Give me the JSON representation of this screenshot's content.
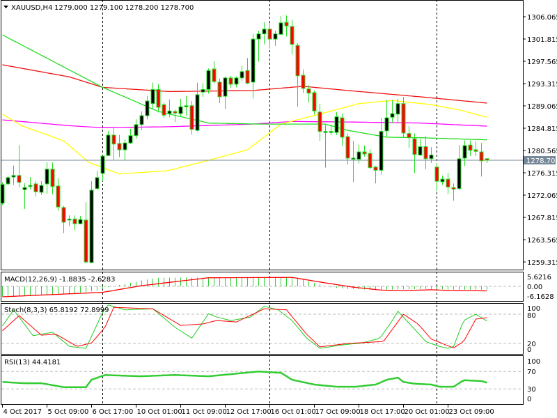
{
  "header": {
    "menu_icon": "triangle-down-icon",
    "symbol": "XAUUSD,H4",
    "ohlc": "1279.000 1279.100 1278.200 1278.700"
  },
  "colors": {
    "bull_body": "#000000",
    "bear_body": "#ff0000",
    "candle_outline": "#22e022",
    "ma_green": "#22dd22",
    "ma_red": "#ee1111",
    "ma_magenta": "#ff00ff",
    "ma_yellow": "#ffff00",
    "bid_line": "#778899",
    "macd_hist": "#33cc33",
    "signal": "#ff0000",
    "stoch_main": "#22cc22",
    "rsi": "#33cc33"
  },
  "chart_data": {
    "type": "candlestick",
    "title": "XAUUSD,H4",
    "timeframe": "H4",
    "price_axis": {
      "range": [
        1259.315,
        1306.065
      ],
      "ticks": [
        "1306.065",
        "1301.815",
        "1297.565",
        "1293.315",
        "1289.065",
        "1284.815",
        "1280.565",
        "1276.315",
        "1272.065",
        "1267.815",
        "1263.565",
        "1259.315"
      ],
      "tick_values": [
        1306.065,
        1301.815,
        1297.565,
        1293.315,
        1289.065,
        1284.815,
        1280.565,
        1276.315,
        1272.065,
        1267.815,
        1263.565,
        1259.315
      ],
      "bid_label": "1278.700",
      "bid": 1278.7
    },
    "time_axis": {
      "labels": [
        "4 Oct 2017",
        "5 Oct 09:00",
        "6 Oct 17:00",
        "10 Oct 01:00",
        "11 Oct 09:00",
        "12 Oct 17:00",
        "16 Oct 01:00",
        "17 Oct 09:00",
        "18 Oct 17:00",
        "20 Oct 01:00",
        "23 Oct 09:00"
      ],
      "label_bar_index": [
        0,
        8,
        16,
        24,
        32,
        40,
        48,
        56,
        64,
        72,
        80
      ],
      "period_separators_bar_index": [
        18,
        48,
        78
      ]
    },
    "candles_ohlc": [
      [
        1270.5,
        1274.5,
        1270.2,
        1274.1
      ],
      [
        1274.2,
        1275.8,
        1274.0,
        1275.4
      ],
      [
        1275.5,
        1277.7,
        1274.0,
        1275.8
      ],
      [
        1275.8,
        1281.6,
        1273.5,
        1274.5
      ],
      [
        1273.1,
        1274.3,
        1269.4,
        1273.5
      ],
      [
        1273.9,
        1275.5,
        1273.1,
        1273.9
      ],
      [
        1274.2,
        1274.7,
        1271.8,
        1272.7
      ],
      [
        1272.6,
        1274.7,
        1272.1,
        1273.9
      ],
      [
        1274.2,
        1278.3,
        1272.3,
        1277.0
      ],
      [
        1277.0,
        1278.3,
        1272.2,
        1273.7
      ],
      [
        1273.8,
        1275.3,
        1269.1,
        1269.8
      ],
      [
        1269.7,
        1270.0,
        1264.8,
        1266.9
      ],
      [
        1267.3,
        1268.2,
        1266.1,
        1267.5
      ],
      [
        1267.5,
        1268.2,
        1265.4,
        1266.6
      ],
      [
        1266.6,
        1268.1,
        1266.5,
        1267.4
      ],
      [
        1267.3,
        1270.7,
        1259.1,
        1259.3
      ],
      [
        1259.2,
        1274.7,
        1259.2,
        1273.0
      ],
      [
        1273.3,
        1276.7,
        1273.1,
        1275.4
      ],
      [
        1276.2,
        1279.6,
        1274.7,
        1279.5
      ],
      [
        1279.6,
        1284.3,
        1279.6,
        1283.5
      ],
      [
        1283.5,
        1285.1,
        1278.8,
        1281.8
      ],
      [
        1281.9,
        1283.5,
        1279.3,
        1280.7
      ],
      [
        1280.7,
        1282.7,
        1278.6,
        1282.0
      ],
      [
        1282.0,
        1284.7,
        1281.8,
        1283.4
      ],
      [
        1283.4,
        1286.5,
        1282.8,
        1285.5
      ],
      [
        1285.5,
        1288.0,
        1284.5,
        1287.2
      ],
      [
        1287.2,
        1291.0,
        1286.5,
        1290.0
      ],
      [
        1289.5,
        1293.5,
        1288.5,
        1292.2
      ],
      [
        1292.2,
        1293.2,
        1287.8,
        1288.8
      ],
      [
        1289.3,
        1289.7,
        1286.8,
        1287.3
      ],
      [
        1287.6,
        1290.3,
        1286.9,
        1288.1
      ],
      [
        1288.0,
        1288.3,
        1286.0,
        1287.7
      ],
      [
        1287.6,
        1290.4,
        1287.0,
        1288.9
      ],
      [
        1289.0,
        1291.0,
        1287.2,
        1289.1
      ],
      [
        1289.1,
        1290.0,
        1283.6,
        1284.6
      ],
      [
        1284.4,
        1293.5,
        1284.2,
        1291.2
      ],
      [
        1291.7,
        1293.4,
        1290.8,
        1292.2
      ],
      [
        1292.2,
        1296.2,
        1291.4,
        1295.8
      ],
      [
        1296.1,
        1297.6,
        1293.3,
        1293.7
      ],
      [
        1293.6,
        1294.3,
        1289.6,
        1290.8
      ],
      [
        1290.9,
        1294.7,
        1288.5,
        1294.4
      ],
      [
        1294.4,
        1294.8,
        1292.5,
        1293.2
      ],
      [
        1293.2,
        1294.7,
        1292.6,
        1294.4
      ],
      [
        1294.4,
        1296.7,
        1293.8,
        1295.6
      ],
      [
        1295.8,
        1298.2,
        1293.2,
        1293.4
      ],
      [
        1293.6,
        1302.8,
        1290.5,
        1301.8
      ],
      [
        1301.8,
        1303.4,
        1297.5,
        1302.8
      ],
      [
        1302.8,
        1305.0,
        1300.8,
        1303.7
      ],
      [
        1303.7,
        1304.9,
        1300.0,
        1301.8
      ],
      [
        1301.8,
        1303.4,
        1300.5,
        1302.8
      ],
      [
        1302.7,
        1306.2,
        1302.6,
        1304.9
      ],
      [
        1305.0,
        1306.3,
        1302.3,
        1304.3
      ],
      [
        1304.2,
        1305.5,
        1298.9,
        1300.8
      ],
      [
        1300.6,
        1301.0,
        1288.9,
        1294.8
      ],
      [
        1294.9,
        1296.0,
        1291.5,
        1292.4
      ],
      [
        1292.3,
        1293.0,
        1289.7,
        1291.5
      ],
      [
        1291.6,
        1292.0,
        1287.4,
        1288.1
      ],
      [
        1287.9,
        1289.5,
        1282.4,
        1284.2
      ],
      [
        1284.0,
        1285.5,
        1277.3,
        1284.2
      ],
      [
        1284.2,
        1285.5,
        1283.5,
        1284.2
      ],
      [
        1284.0,
        1287.9,
        1283.5,
        1287.0
      ],
      [
        1286.8,
        1287.6,
        1281.4,
        1283.1
      ],
      [
        1283.2,
        1283.8,
        1277.9,
        1279.1
      ],
      [
        1279.0,
        1282.4,
        1274.5,
        1279.1
      ],
      [
        1278.9,
        1281.7,
        1278.1,
        1280.3
      ],
      [
        1280.3,
        1281.5,
        1279.4,
        1279.9
      ],
      [
        1280.0,
        1280.8,
        1277.0,
        1277.3
      ],
      [
        1277.4,
        1277.6,
        1274.3,
        1276.8
      ],
      [
        1276.8,
        1286.8,
        1276.0,
        1284.2
      ],
      [
        1284.3,
        1290.2,
        1283.1,
        1286.8
      ],
      [
        1286.9,
        1290.2,
        1285.8,
        1287.6
      ],
      [
        1287.5,
        1290.4,
        1285.7,
        1289.5
      ],
      [
        1289.5,
        1290.8,
        1283.1,
        1283.9
      ],
      [
        1283.8,
        1285.2,
        1281.0,
        1283.0
      ],
      [
        1282.8,
        1283.8,
        1276.3,
        1279.8
      ],
      [
        1279.7,
        1282.7,
        1279.5,
        1281.3
      ],
      [
        1281.3,
        1283.3,
        1277.0,
        1279.0
      ],
      [
        1279.0,
        1281.2,
        1278.2,
        1279.7
      ],
      [
        1277.4,
        1278.2,
        1272.8,
        1274.7
      ],
      [
        1274.6,
        1275.8,
        1274.0,
        1275.1
      ],
      [
        1275.1,
        1276.3,
        1272.3,
        1273.6
      ],
      [
        1273.5,
        1274.3,
        1271.0,
        1273.2
      ],
      [
        1273.3,
        1281.6,
        1273.0,
        1279.0
      ],
      [
        1279.1,
        1282.5,
        1277.6,
        1281.5
      ],
      [
        1281.6,
        1282.5,
        1279.5,
        1280.6
      ],
      [
        1280.7,
        1282.3,
        1279.5,
        1280.4
      ],
      [
        1280.3,
        1282.0,
        1275.6,
        1278.6
      ],
      [
        1279.0,
        1279.1,
        1278.2,
        1278.7
      ]
    ],
    "moving_averages_keypoints_bar_value": {
      "green": [
        [
          0,
          1302.6
        ],
        [
          18,
          1292.6
        ],
        [
          28,
          1288
        ],
        [
          37,
          1285.8
        ],
        [
          46,
          1285.6
        ],
        [
          58,
          1285.6
        ],
        [
          62,
          1284.4
        ],
        [
          69,
          1283.1
        ],
        [
          75,
          1283
        ],
        [
          87,
          1282.6
        ]
      ],
      "red": [
        [
          0,
          1296.9
        ],
        [
          12,
          1294.6
        ],
        [
          18,
          1292.6
        ],
        [
          30,
          1291.8
        ],
        [
          45,
          1292
        ],
        [
          54,
          1292.8
        ],
        [
          62,
          1292
        ],
        [
          75,
          1290.8
        ],
        [
          87,
          1289.6
        ]
      ],
      "magenta": [
        [
          0,
          1286.4
        ],
        [
          12,
          1285.3
        ],
        [
          18,
          1284.9
        ],
        [
          30,
          1285.1
        ],
        [
          45,
          1285.6
        ],
        [
          52,
          1286.1
        ],
        [
          62,
          1286
        ],
        [
          75,
          1285.8
        ],
        [
          87,
          1285.2
        ]
      ],
      "yellow": [
        [
          0,
          1287.5
        ],
        [
          3.4,
          1285.3
        ],
        [
          11,
          1282.4
        ],
        [
          15.5,
          1278.3
        ],
        [
          21,
          1276.1
        ],
        [
          29.6,
          1276.7
        ],
        [
          37,
          1278.7
        ],
        [
          44,
          1280.7
        ],
        [
          50,
          1285.6
        ],
        [
          58,
          1287.8
        ],
        [
          64,
          1289.5
        ],
        [
          70,
          1290.1
        ],
        [
          77,
          1289.3
        ],
        [
          82,
          1288.3
        ],
        [
          87,
          1286.9
        ]
      ]
    },
    "macd": {
      "label": "MACD(12,26,9) -1.8835 -2.6283",
      "axis_labels": [
        "5.6216",
        "0.00",
        "-6.1628"
      ],
      "range": [
        -6.1628,
        5.6216
      ],
      "histogram_keypoints": [
        [
          0,
          -6
        ],
        [
          12,
          -4.5
        ],
        [
          17,
          -2.5
        ],
        [
          19,
          -0.5
        ],
        [
          21,
          0.8
        ],
        [
          23,
          2
        ],
        [
          26,
          4
        ],
        [
          28,
          5
        ],
        [
          50,
          5.5
        ],
        [
          53,
          5
        ],
        [
          55,
          3
        ],
        [
          57,
          1
        ],
        [
          58.5,
          -0.5
        ],
        [
          62,
          -1.5
        ],
        [
          67,
          -2
        ],
        [
          72,
          -1.7
        ],
        [
          77,
          -1.5
        ],
        [
          82,
          -2
        ],
        [
          87,
          -1.8835
        ]
      ],
      "signal_keypoints": [
        [
          0,
          -6.1
        ],
        [
          18,
          -3.5
        ],
        [
          25,
          0.4
        ],
        [
          37,
          5
        ],
        [
          52,
          5.2
        ],
        [
          58,
          2
        ],
        [
          63,
          -0.5
        ],
        [
          68,
          -2.2
        ],
        [
          72,
          -2.5
        ],
        [
          77,
          -2
        ],
        [
          82,
          -2.6
        ],
        [
          87,
          -2.6283
        ]
      ]
    },
    "stochastic": {
      "label": "Stoch(8,3,3) 65.8192 72.8999",
      "axis_labels": [
        "100",
        "80",
        "20",
        "0"
      ],
      "levels": [
        80,
        20
      ],
      "main_keypoints": [
        [
          0,
          56
        ],
        [
          2,
          89
        ],
        [
          5.5,
          36
        ],
        [
          9,
          43
        ],
        [
          12,
          14
        ],
        [
          15,
          10
        ],
        [
          18,
          84
        ],
        [
          19,
          99
        ],
        [
          22,
          89
        ],
        [
          27,
          91
        ],
        [
          31,
          53
        ],
        [
          34,
          31
        ],
        [
          37,
          81
        ],
        [
          38.5,
          74
        ],
        [
          41,
          67
        ],
        [
          44.5,
          74
        ],
        [
          47,
          96
        ],
        [
          49.5,
          89
        ],
        [
          52,
          67
        ],
        [
          54.6,
          31
        ],
        [
          57,
          10
        ],
        [
          61,
          17
        ],
        [
          64.6,
          21
        ],
        [
          67.8,
          31
        ],
        [
          70,
          67
        ],
        [
          71,
          86
        ],
        [
          73.7,
          53
        ],
        [
          76,
          24
        ],
        [
          78.4,
          14
        ],
        [
          80,
          10
        ],
        [
          81,
          14
        ],
        [
          82.8,
          67
        ],
        [
          85,
          80
        ],
        [
          87,
          65.8
        ]
      ],
      "signal_keypoints": [
        [
          0,
          46
        ],
        [
          3,
          77
        ],
        [
          7,
          37
        ],
        [
          9.6,
          39
        ],
        [
          13.4,
          14
        ],
        [
          16,
          21
        ],
        [
          18.4,
          53
        ],
        [
          20,
          94
        ],
        [
          27,
          91
        ],
        [
          32,
          57
        ],
        [
          36,
          60
        ],
        [
          38.4,
          67
        ],
        [
          42,
          64
        ],
        [
          47,
          91
        ],
        [
          51,
          89
        ],
        [
          54.6,
          39
        ],
        [
          57,
          13
        ],
        [
          62,
          20
        ],
        [
          68.4,
          24
        ],
        [
          72,
          80
        ],
        [
          74.6,
          60
        ],
        [
          77,
          29
        ],
        [
          79.6,
          17
        ],
        [
          81,
          11
        ],
        [
          82.8,
          24
        ],
        [
          85,
          70
        ],
        [
          87,
          72.9
        ]
      ]
    },
    "rsi": {
      "label": "RSI(13) 44.4181",
      "axis_labels": [
        "100",
        "70",
        "30",
        "0"
      ],
      "levels": [
        70,
        30
      ],
      "keypoints": [
        [
          0,
          46
        ],
        [
          4,
          43
        ],
        [
          7,
          43
        ],
        [
          11,
          34
        ],
        [
          15,
          34
        ],
        [
          16,
          51
        ],
        [
          18.4,
          62
        ],
        [
          24.6,
          59
        ],
        [
          31,
          62
        ],
        [
          37,
          59
        ],
        [
          46,
          70
        ],
        [
          50,
          67
        ],
        [
          52,
          51
        ],
        [
          56,
          40
        ],
        [
          60,
          35
        ],
        [
          63.4,
          35
        ],
        [
          67,
          40
        ],
        [
          69,
          51
        ],
        [
          71,
          56
        ],
        [
          72,
          46
        ],
        [
          74,
          42
        ],
        [
          77,
          40
        ],
        [
          78.4,
          35
        ],
        [
          81,
          35
        ],
        [
          82.8,
          50
        ],
        [
          86,
          48
        ],
        [
          87,
          44.4
        ]
      ]
    }
  }
}
